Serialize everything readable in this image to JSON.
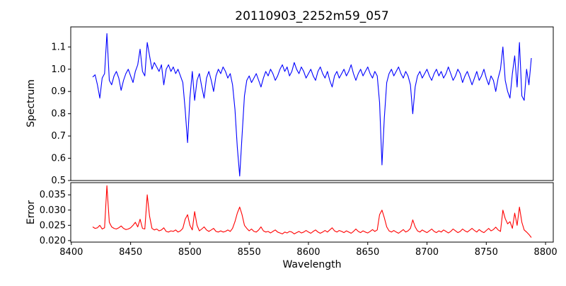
{
  "figure": {
    "background": "#ffffff"
  },
  "chart_data": {
    "type": "line",
    "title": "20110903_2252m59_057",
    "xlabel": "Wavelength",
    "xlim": [
      8399.5,
      8806.5
    ],
    "x_start": 8418,
    "x_step": 2,
    "n_points": 186,
    "x_ticks": [
      8400,
      8450,
      8500,
      8550,
      8600,
      8650,
      8700,
      8750,
      8800
    ],
    "x_tick_labels": [
      "8400",
      "8450",
      "8500",
      "8550",
      "8600",
      "8650",
      "8700",
      "8750",
      "8800"
    ],
    "top": {
      "ylabel": "Spectrum",
      "ylim": [
        0.5,
        1.19
      ],
      "y_ticks": [
        0.5,
        0.6,
        0.7,
        0.8,
        0.9,
        1.0,
        1.1
      ],
      "y_tick_labels": [
        "0.5",
        "0.6",
        "0.7",
        "0.8",
        "0.9",
        "1.0",
        "1.1"
      ],
      "series": [
        {
          "name": "spectrum",
          "color": "#0000ff",
          "values": [
            0.965,
            0.975,
            0.93,
            0.87,
            0.96,
            0.98,
            1.16,
            0.95,
            0.93,
            0.97,
            0.99,
            0.96,
            0.905,
            0.95,
            0.98,
            1.0,
            0.97,
            0.94,
            0.99,
            1.02,
            1.09,
            0.99,
            0.97,
            1.12,
            1.06,
            1.0,
            1.03,
            1.01,
            0.99,
            1.02,
            0.93,
            1.0,
            1.02,
            0.99,
            1.01,
            0.98,
            1.0,
            0.97,
            0.94,
            0.82,
            0.67,
            0.87,
            0.99,
            0.86,
            0.95,
            0.98,
            0.92,
            0.87,
            0.96,
            0.99,
            0.95,
            0.9,
            0.97,
            1.0,
            0.98,
            1.01,
            0.99,
            0.96,
            0.98,
            0.93,
            0.82,
            0.65,
            0.52,
            0.7,
            0.88,
            0.95,
            0.97,
            0.94,
            0.96,
            0.98,
            0.95,
            0.92,
            0.96,
            0.99,
            0.97,
            1.0,
            0.98,
            0.95,
            0.97,
            1.0,
            1.02,
            0.99,
            1.01,
            0.97,
            0.99,
            1.03,
            1.0,
            0.98,
            1.01,
            0.99,
            0.96,
            0.98,
            1.0,
            0.97,
            0.95,
            0.99,
            1.01,
            0.98,
            0.96,
            0.99,
            0.95,
            0.92,
            0.97,
            0.99,
            0.96,
            0.98,
            1.0,
            0.97,
            0.99,
            1.02,
            0.98,
            0.95,
            0.98,
            1.0,
            0.97,
            0.99,
            1.01,
            0.98,
            0.96,
            0.99,
            0.97,
            0.85,
            0.57,
            0.78,
            0.94,
            0.98,
            1.0,
            0.97,
            0.99,
            1.01,
            0.98,
            0.96,
            0.99,
            0.97,
            0.93,
            0.8,
            0.92,
            0.97,
            0.99,
            0.96,
            0.98,
            1.0,
            0.97,
            0.95,
            0.98,
            1.0,
            0.97,
            0.99,
            0.96,
            0.98,
            1.01,
            0.98,
            0.95,
            0.97,
            1.0,
            0.98,
            0.94,
            0.97,
            0.99,
            0.96,
            0.93,
            0.96,
            0.99,
            0.95,
            0.97,
            1.0,
            0.96,
            0.93,
            0.97,
            0.95,
            0.9,
            0.96,
            1.0,
            1.1,
            0.95,
            0.9,
            0.87,
            0.98,
            1.06,
            0.92,
            1.12,
            0.88,
            0.86,
            1.0,
            0.93,
            1.05
          ]
        }
      ]
    },
    "bottom": {
      "ylabel": "Error",
      "ylim": [
        0.0195,
        0.039
      ],
      "y_ticks": [
        0.02,
        0.025,
        0.03,
        0.035
      ],
      "y_tick_labels": [
        "0.020",
        "0.025",
        "0.030",
        "0.035"
      ],
      "series": [
        {
          "name": "error",
          "color": "#ff0000",
          "values": [
            0.0245,
            0.024,
            0.0242,
            0.025,
            0.0238,
            0.0242,
            0.038,
            0.026,
            0.0245,
            0.024,
            0.0238,
            0.0242,
            0.0248,
            0.024,
            0.0236,
            0.0238,
            0.0242,
            0.025,
            0.026,
            0.0245,
            0.027,
            0.024,
            0.0238,
            0.035,
            0.028,
            0.024,
            0.0235,
            0.0238,
            0.0232,
            0.0235,
            0.0242,
            0.023,
            0.0228,
            0.0232,
            0.023,
            0.0235,
            0.0228,
            0.0232,
            0.024,
            0.027,
            0.0285,
            0.025,
            0.0235,
            0.0295,
            0.025,
            0.0232,
            0.0238,
            0.0245,
            0.0235,
            0.023,
            0.0235,
            0.024,
            0.023,
            0.0228,
            0.0232,
            0.0228,
            0.023,
            0.0235,
            0.023,
            0.024,
            0.0262,
            0.029,
            0.031,
            0.0285,
            0.025,
            0.024,
            0.0232,
            0.0238,
            0.023,
            0.0228,
            0.0235,
            0.0245,
            0.0232,
            0.0228,
            0.023,
            0.0225,
            0.023,
            0.0235,
            0.0228,
            0.0225,
            0.0222,
            0.0228,
            0.0225,
            0.023,
            0.0228,
            0.0222,
            0.0226,
            0.023,
            0.0225,
            0.0228,
            0.0233,
            0.0228,
            0.0224,
            0.023,
            0.0235,
            0.0228,
            0.0224,
            0.0228,
            0.0233,
            0.0228,
            0.0235,
            0.0242,
            0.0232,
            0.0228,
            0.0233,
            0.023,
            0.0226,
            0.0232,
            0.0228,
            0.0224,
            0.023,
            0.0238,
            0.023,
            0.0226,
            0.0232,
            0.0228,
            0.0225,
            0.023,
            0.0236,
            0.023,
            0.0235,
            0.0285,
            0.03,
            0.0275,
            0.0245,
            0.0232,
            0.0228,
            0.0233,
            0.0228,
            0.0224,
            0.023,
            0.0236,
            0.0228,
            0.0232,
            0.024,
            0.0268,
            0.0245,
            0.0232,
            0.0228,
            0.0235,
            0.023,
            0.0226,
            0.0232,
            0.0238,
            0.023,
            0.0226,
            0.0232,
            0.0228,
            0.0235,
            0.023,
            0.0225,
            0.023,
            0.0238,
            0.0232,
            0.0226,
            0.023,
            0.0238,
            0.0232,
            0.0228,
            0.0234,
            0.024,
            0.0233,
            0.0228,
            0.0236,
            0.023,
            0.0226,
            0.0233,
            0.024,
            0.0232,
            0.0236,
            0.0244,
            0.0235,
            0.023,
            0.03,
            0.0272,
            0.0255,
            0.0262,
            0.024,
            0.029,
            0.025,
            0.031,
            0.026,
            0.0235,
            0.0228,
            0.022,
            0.021
          ]
        }
      ]
    }
  }
}
